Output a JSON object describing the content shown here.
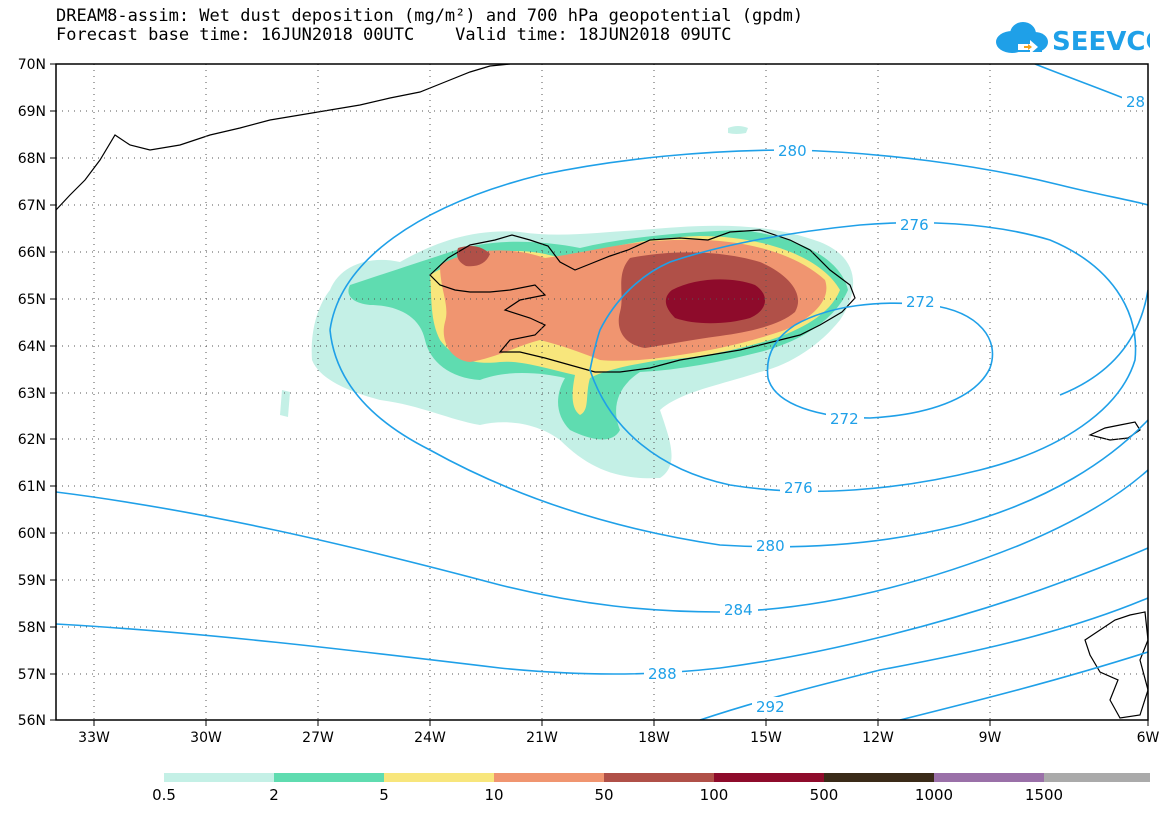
{
  "title_line1": "DREAM8-assim: Wet dust deposition (mg/m²) and 700 hPa geopotential (gpdm)",
  "title_line2": "Forecast base time: 16JUN2018 00UTC    Valid time: 18JUN2018 09UTC",
  "logo_text": "SEEVCCC",
  "map": {
    "lat_labels": [
      "70N",
      "69N",
      "68N",
      "67N",
      "66N",
      "65N",
      "64N",
      "63N",
      "62N",
      "61N",
      "60N",
      "59N",
      "58N",
      "57N",
      "56N"
    ],
    "lon_labels": [
      "33W",
      "30W",
      "27W",
      "24W",
      "21W",
      "18W",
      "15W",
      "12W",
      "9W",
      "6W"
    ],
    "lon_range": [
      -34.5,
      -6
    ],
    "lat_range": [
      56,
      70
    ],
    "contour_color": "#1fa0e8",
    "contours": [
      {
        "value": "292",
        "label": "292"
      },
      {
        "value": "288",
        "label": "288"
      },
      {
        "value": "284",
        "label": "284"
      },
      {
        "value": "280",
        "label": "280"
      },
      {
        "value": "280b",
        "label": "280"
      },
      {
        "value": "276a",
        "label": "276"
      },
      {
        "value": "276b",
        "label": "276"
      },
      {
        "value": "272a",
        "label": "272"
      },
      {
        "value": "272b",
        "label": "272"
      },
      {
        "value": "28",
        "label": "28"
      }
    ]
  },
  "legend": {
    "labels": [
      "0.5",
      "2",
      "5",
      "10",
      "50",
      "100",
      "500",
      "1000",
      "1500"
    ],
    "colors": [
      "#c4f0e6",
      "#5fdcb0",
      "#f8e67c",
      "#f09570",
      "#b05048",
      "#8e0b2b",
      "#3a2a18",
      "#9a70a8",
      "#aaaaaa"
    ]
  }
}
